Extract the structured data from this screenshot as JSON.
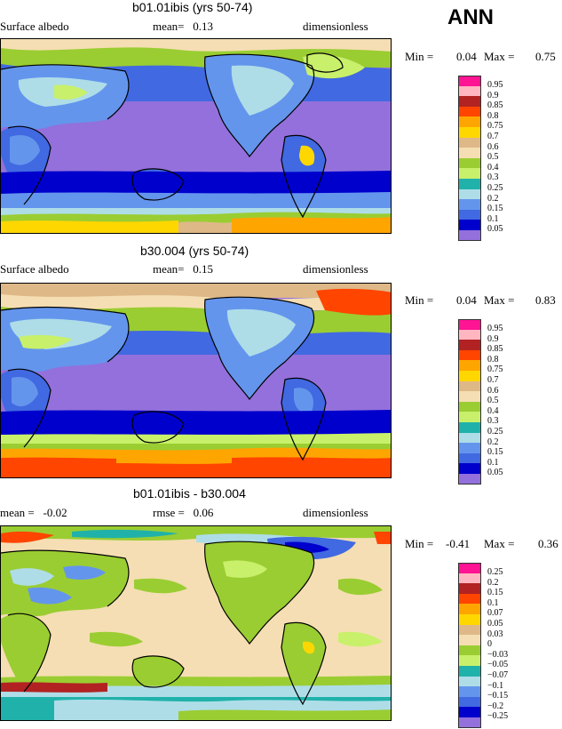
{
  "header": {
    "season": "ANN"
  },
  "panels": [
    {
      "id": "p1",
      "title": "b01.01ibis (yrs 50-74)",
      "left_label": "Surface albedo",
      "mid_label": "mean=   0.13",
      "right_label": "dimensionless",
      "min_label": "Min =",
      "min_value": "0.04",
      "max_label": "Max =",
      "max_value": "0.75",
      "legend": [
        "0.95",
        "0.9",
        "0.85",
        "0.8",
        "0.75",
        "0.7",
        "0.6",
        "0.5",
        "0.4",
        "0.3",
        "0.25",
        "0.2",
        "0.15",
        "0.1",
        "0.05"
      ],
      "legend_colors": [
        "#ff1493",
        "#ffb6c1",
        "#b22222",
        "#ff4500",
        "#ffa500",
        "#ffd700",
        "#deb887",
        "#f5deb3",
        "#9acd32",
        "#c8f06a",
        "#20b2aa",
        "#aedde8",
        "#6495ed",
        "#4169e1",
        "#0000cd",
        "#9370db"
      ]
    },
    {
      "id": "p2",
      "title": "b30.004 (yrs 50-74)",
      "left_label": "Surface albedo",
      "mid_label": "mean=   0.15",
      "right_label": "dimensionless",
      "min_label": "Min =",
      "min_value": "0.04",
      "max_label": "Max =",
      "max_value": "0.83",
      "legend": [
        "0.95",
        "0.9",
        "0.85",
        "0.8",
        "0.75",
        "0.7",
        "0.6",
        "0.5",
        "0.4",
        "0.3",
        "0.25",
        "0.2",
        "0.15",
        "0.1",
        "0.05"
      ],
      "legend_colors": [
        "#ff1493",
        "#ffb6c1",
        "#b22222",
        "#ff4500",
        "#ffa500",
        "#ffd700",
        "#deb887",
        "#f5deb3",
        "#9acd32",
        "#c8f06a",
        "#20b2aa",
        "#aedde8",
        "#6495ed",
        "#4169e1",
        "#0000cd",
        "#9370db"
      ]
    },
    {
      "id": "p3",
      "title": "b01.01ibis - b30.004",
      "left_label": "mean =   -0.02",
      "mid_label": "rmse =   0.06",
      "right_label": "dimensionless",
      "min_label": "Min =",
      "min_value": "-0.41",
      "max_label": "Max =",
      "max_value": "0.36",
      "legend": [
        "0.25",
        "0.2",
        "0.15",
        "0.1",
        "0.07",
        "0.05",
        "0.03",
        "0",
        "-0.03",
        "-0.05",
        "-0.07",
        "-0.1",
        "-0.15",
        "-0.2",
        "-0.25"
      ],
      "legend_colors": [
        "#ff1493",
        "#ffb6c1",
        "#b22222",
        "#ff4500",
        "#ffa500",
        "#ffd700",
        "#deb887",
        "#f5deb3",
        "#9acd32",
        "#c8f06a",
        "#20b2aa",
        "#aedde8",
        "#6495ed",
        "#4169e1",
        "#0000cd",
        "#9370db"
      ]
    }
  ]
}
